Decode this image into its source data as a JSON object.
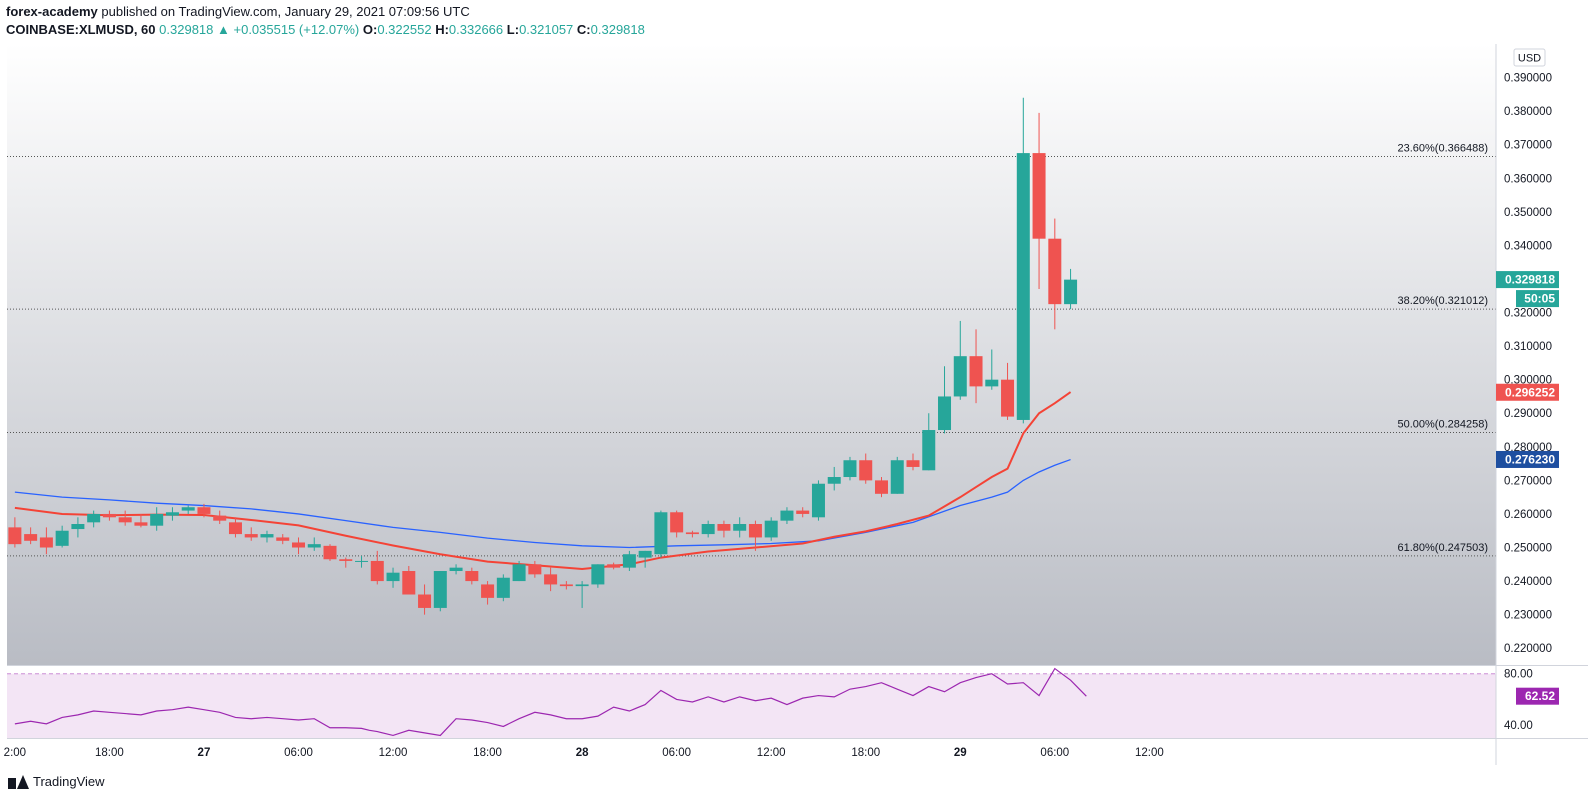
{
  "header": {
    "author": "forex-academy",
    "published": "published on TradingView.com, January 29, 2021 07:09:56 UTC",
    "symbol": "COINBASE:XLMUSD, 60",
    "last": "0.329818",
    "change": "▲ +0.035515 (+12.07%)",
    "o_label": "O:",
    "o_value": "0.322552",
    "h_label": "H:",
    "h_value": "0.332666",
    "l_label": "L:",
    "l_value": "0.321057",
    "c_label": "C:",
    "c_value": "0.329818"
  },
  "footer": {
    "brand": "TradingView"
  },
  "colors": {
    "up": "#26a69a",
    "down": "#ef5350",
    "ema_fast": "#f44336",
    "ema_slow": "#2962ff",
    "rsi": "#9c27b0"
  },
  "chart_data": {
    "type": "candlestick",
    "currency": "USD",
    "ylim": [
      0.215,
      0.4
    ],
    "y_ticks": [
      0.22,
      0.23,
      0.24,
      0.25,
      0.26,
      0.27,
      0.28,
      0.29,
      0.3,
      0.31,
      0.32,
      0.33,
      0.34,
      0.35,
      0.36,
      0.37,
      0.38,
      0.39
    ],
    "y_tick_labels": [
      "0.220000",
      "0.230000",
      "0.240000",
      "0.250000",
      "0.260000",
      "0.270000",
      "0.280000",
      "0.290000",
      "0.300000",
      "0.310000",
      "0.320000",
      "0.330000",
      "0.340000",
      "0.350000",
      "0.360000",
      "0.370000",
      "0.380000",
      "0.390000"
    ],
    "x_range": [
      -0.5,
      94
    ],
    "x_ticks": [
      {
        "x": 0,
        "label": "2:00"
      },
      {
        "x": 6,
        "label": "18:00"
      },
      {
        "x": 12,
        "label": "27"
      },
      {
        "x": 18,
        "label": "06:00"
      },
      {
        "x": 24,
        "label": "12:00"
      },
      {
        "x": 30,
        "label": "18:00"
      },
      {
        "x": 36,
        "label": "28"
      },
      {
        "x": 42,
        "label": "06:00"
      },
      {
        "x": 48,
        "label": "12:00"
      },
      {
        "x": 54,
        "label": "18:00"
      },
      {
        "x": 60,
        "label": "29"
      },
      {
        "x": 66,
        "label": "06:00"
      },
      {
        "x": 72,
        "label": "12:00"
      }
    ],
    "ohlc": [
      [
        0.256,
        0.259,
        0.25,
        0.251
      ],
      [
        0.254,
        0.256,
        0.251,
        0.252
      ],
      [
        0.253,
        0.256,
        0.248,
        0.25
      ],
      [
        0.2505,
        0.2565,
        0.25,
        0.255
      ],
      [
        0.2555,
        0.259,
        0.253,
        0.257
      ],
      [
        0.2575,
        0.261,
        0.256,
        0.26
      ],
      [
        0.26,
        0.261,
        0.258,
        0.259
      ],
      [
        0.259,
        0.261,
        0.2565,
        0.2575
      ],
      [
        0.2575,
        0.26,
        0.256,
        0.2565
      ],
      [
        0.2565,
        0.262,
        0.255,
        0.26
      ],
      [
        0.2595,
        0.262,
        0.258,
        0.2605
      ],
      [
        0.261,
        0.2625,
        0.26,
        0.262
      ],
      [
        0.262,
        0.263,
        0.259,
        0.26
      ],
      [
        0.2595,
        0.261,
        0.257,
        0.258
      ],
      [
        0.2575,
        0.259,
        0.253,
        0.254
      ],
      [
        0.254,
        0.256,
        0.252,
        0.253
      ],
      [
        0.253,
        0.255,
        0.2515,
        0.254
      ],
      [
        0.253,
        0.254,
        0.251,
        0.252
      ],
      [
        0.2515,
        0.253,
        0.248,
        0.25
      ],
      [
        0.25,
        0.253,
        0.249,
        0.251
      ],
      [
        0.2505,
        0.251,
        0.246,
        0.2465
      ],
      [
        0.2465,
        0.247,
        0.244,
        0.246
      ],
      [
        0.246,
        0.2475,
        0.244,
        0.246
      ],
      [
        0.246,
        0.249,
        0.239,
        0.24
      ],
      [
        0.24,
        0.244,
        0.238,
        0.2425
      ],
      [
        0.243,
        0.2445,
        0.236,
        0.236
      ],
      [
        0.236,
        0.239,
        0.23,
        0.232
      ],
      [
        0.232,
        0.243,
        0.231,
        0.243
      ],
      [
        0.243,
        0.245,
        0.242,
        0.244
      ],
      [
        0.243,
        0.244,
        0.239,
        0.24
      ],
      [
        0.239,
        0.24,
        0.233,
        0.235
      ],
      [
        0.235,
        0.242,
        0.234,
        0.241
      ],
      [
        0.24,
        0.246,
        0.24,
        0.245
      ],
      [
        0.245,
        0.246,
        0.241,
        0.242
      ],
      [
        0.242,
        0.244,
        0.237,
        0.239
      ],
      [
        0.239,
        0.24,
        0.2375,
        0.2385
      ],
      [
        0.2385,
        0.24,
        0.232,
        0.239
      ],
      [
        0.239,
        0.245,
        0.238,
        0.245
      ],
      [
        0.245,
        0.2455,
        0.2435,
        0.244
      ],
      [
        0.244,
        0.249,
        0.243,
        0.248
      ],
      [
        0.247,
        0.249,
        0.244,
        0.249
      ],
      [
        0.248,
        0.261,
        0.247,
        0.2605
      ],
      [
        0.2605,
        0.261,
        0.253,
        0.2545
      ],
      [
        0.2545,
        0.255,
        0.253,
        0.254
      ],
      [
        0.254,
        0.258,
        0.253,
        0.257
      ],
      [
        0.257,
        0.258,
        0.253,
        0.255
      ],
      [
        0.255,
        0.259,
        0.253,
        0.257
      ],
      [
        0.257,
        0.258,
        0.249,
        0.253
      ],
      [
        0.253,
        0.259,
        0.252,
        0.258
      ],
      [
        0.258,
        0.262,
        0.257,
        0.261
      ],
      [
        0.261,
        0.262,
        0.259,
        0.26
      ],
      [
        0.259,
        0.27,
        0.258,
        0.269
      ],
      [
        0.269,
        0.274,
        0.267,
        0.271
      ],
      [
        0.271,
        0.277,
        0.27,
        0.276
      ],
      [
        0.276,
        0.278,
        0.269,
        0.27
      ],
      [
        0.27,
        0.271,
        0.265,
        0.266
      ],
      [
        0.266,
        0.277,
        0.266,
        0.276
      ],
      [
        0.276,
        0.278,
        0.273,
        0.274
      ],
      [
        0.273,
        0.29,
        0.273,
        0.285
      ],
      [
        0.285,
        0.304,
        0.284,
        0.295
      ],
      [
        0.295,
        0.3175,
        0.294,
        0.307
      ],
      [
        0.307,
        0.315,
        0.293,
        0.298
      ],
      [
        0.298,
        0.309,
        0.297,
        0.3
      ],
      [
        0.3,
        0.305,
        0.288,
        0.289
      ],
      [
        0.288,
        0.384,
        0.287,
        0.3675
      ],
      [
        0.3675,
        0.3795,
        0.327,
        0.342
      ],
      [
        0.342,
        0.348,
        0.315,
        0.3225
      ],
      [
        0.3225,
        0.333,
        0.321,
        0.3298
      ]
    ],
    "ema_fast": [
      [
        0,
        0.2618
      ],
      [
        3,
        0.26
      ],
      [
        6,
        0.2596
      ],
      [
        9,
        0.2598
      ],
      [
        12,
        0.2597
      ],
      [
        15,
        0.2582
      ],
      [
        18,
        0.2566
      ],
      [
        21,
        0.2535
      ],
      [
        24,
        0.2506
      ],
      [
        27,
        0.248
      ],
      [
        30,
        0.2458
      ],
      [
        33,
        0.2447
      ],
      [
        36,
        0.2436
      ],
      [
        39,
        0.245
      ],
      [
        41,
        0.247
      ],
      [
        44,
        0.2488
      ],
      [
        47,
        0.25
      ],
      [
        50,
        0.2512
      ],
      [
        52,
        0.2532
      ],
      [
        54,
        0.2548
      ],
      [
        56,
        0.257
      ],
      [
        58,
        0.2595
      ],
      [
        60,
        0.265
      ],
      [
        61,
        0.268
      ],
      [
        62,
        0.271
      ],
      [
        63,
        0.2735
      ],
      [
        64,
        0.284
      ],
      [
        65,
        0.29
      ],
      [
        66,
        0.293
      ],
      [
        67,
        0.2963
      ]
    ],
    "ema_slow": [
      [
        0,
        0.2665
      ],
      [
        3,
        0.265
      ],
      [
        6,
        0.2642
      ],
      [
        9,
        0.2632
      ],
      [
        12,
        0.2625
      ],
      [
        15,
        0.2615
      ],
      [
        18,
        0.26
      ],
      [
        21,
        0.258
      ],
      [
        24,
        0.256
      ],
      [
        27,
        0.2545
      ],
      [
        30,
        0.2528
      ],
      [
        33,
        0.2515
      ],
      [
        36,
        0.2505
      ],
      [
        39,
        0.25
      ],
      [
        42,
        0.2505
      ],
      [
        45,
        0.2508
      ],
      [
        48,
        0.2512
      ],
      [
        51,
        0.252
      ],
      [
        54,
        0.2545
      ],
      [
        57,
        0.2575
      ],
      [
        60,
        0.2625
      ],
      [
        62,
        0.265
      ],
      [
        63,
        0.2665
      ],
      [
        64,
        0.27
      ],
      [
        65,
        0.2725
      ],
      [
        66,
        0.2745
      ],
      [
        67,
        0.2762
      ]
    ],
    "fib_levels": [
      {
        "label": "23.60%(0.366488)",
        "value": 0.366488
      },
      {
        "label": "38.20%(0.321012)",
        "value": 0.321012
      },
      {
        "label": "50.00%(0.284258)",
        "value": 0.284258
      },
      {
        "label": "61.80%(0.247503)",
        "value": 0.247503
      }
    ],
    "price_badges": [
      {
        "label": "0.329818",
        "value": 0.329818,
        "color": "#26a69a"
      },
      {
        "label": "50:05",
        "value": 0.32484,
        "color": "#26a69a"
      },
      {
        "label": "0.296252",
        "value": 0.296252,
        "color": "#ef5350"
      },
      {
        "label": "0.276230",
        "value": 0.27623,
        "color": "#1e4fa0"
      }
    ],
    "rsi": {
      "ylim": [
        30,
        86
      ],
      "ticks": [
        {
          "value": 80,
          "label": "80.00"
        },
        {
          "value": 40,
          "label": "40.00"
        }
      ],
      "last_label": "62.52",
      "values": [
        [
          0,
          41
        ],
        [
          1,
          43
        ],
        [
          2,
          41
        ],
        [
          3,
          46
        ],
        [
          4,
          48
        ],
        [
          5,
          51
        ],
        [
          6,
          50
        ],
        [
          7,
          49
        ],
        [
          8,
          48
        ],
        [
          9,
          51
        ],
        [
          10,
          52
        ],
        [
          11,
          54
        ],
        [
          12,
          52
        ],
        [
          13,
          50
        ],
        [
          14,
          46
        ],
        [
          15,
          45
        ],
        [
          16,
          46
        ],
        [
          17,
          45
        ],
        [
          18,
          44
        ],
        [
          19,
          45
        ],
        [
          20,
          38
        ],
        [
          21,
          38
        ],
        [
          22,
          37.5
        ],
        [
          22.5,
          36
        ],
        [
          23,
          35
        ],
        [
          24,
          32
        ],
        [
          25,
          36
        ],
        [
          26,
          34
        ],
        [
          27,
          32
        ],
        [
          28,
          45
        ],
        [
          29,
          44
        ],
        [
          30,
          42
        ],
        [
          31,
          39
        ],
        [
          32,
          45
        ],
        [
          33,
          50
        ],
        [
          34,
          48
        ],
        [
          35,
          45
        ],
        [
          36,
          45
        ],
        [
          37,
          47
        ],
        [
          38,
          54
        ],
        [
          39,
          51
        ],
        [
          40,
          56
        ],
        [
          41,
          67
        ],
        [
          42,
          60
        ],
        [
          43,
          58
        ],
        [
          44,
          62
        ],
        [
          45,
          58
        ],
        [
          46,
          62
        ],
        [
          47,
          59
        ],
        [
          48,
          61
        ],
        [
          49,
          56
        ],
        [
          50,
          61
        ],
        [
          51,
          63
        ],
        [
          52,
          62
        ],
        [
          53,
          68
        ],
        [
          54,
          70
        ],
        [
          55,
          73
        ],
        [
          56,
          68
        ],
        [
          57,
          63
        ],
        [
          58,
          70
        ],
        [
          59,
          66
        ],
        [
          60,
          73
        ],
        [
          61,
          77
        ],
        [
          62,
          80
        ],
        [
          63,
          72
        ],
        [
          64,
          73
        ],
        [
          65,
          63
        ],
        [
          66,
          84
        ],
        [
          67,
          75
        ],
        [
          68,
          62.52
        ]
      ]
    }
  }
}
